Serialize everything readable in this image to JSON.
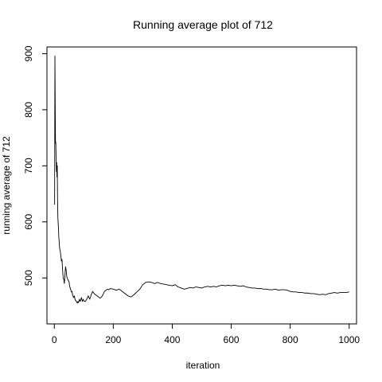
{
  "chart_data": {
    "type": "line",
    "title": "Running average plot of 712",
    "xlabel": "iteration",
    "ylabel": "running average of 712",
    "xlim": [
      -25,
      1025
    ],
    "ylim": [
      418,
      912
    ],
    "x_ticks": [
      0,
      200,
      400,
      600,
      800,
      1000
    ],
    "y_ticks": [
      500,
      600,
      700,
      800,
      900
    ],
    "grid": false,
    "series": [
      {
        "values": [
          [
            1,
            631
          ],
          [
            2,
            896
          ],
          [
            3,
            810
          ],
          [
            4,
            740
          ],
          [
            5,
            742
          ],
          [
            6,
            715
          ],
          [
            7,
            690
          ],
          [
            8,
            706
          ],
          [
            9,
            680
          ],
          [
            10,
            700
          ],
          [
            11,
            640
          ],
          [
            12,
            608
          ],
          [
            13,
            598
          ],
          [
            14,
            590
          ],
          [
            15,
            575
          ],
          [
            16,
            568
          ],
          [
            18,
            553
          ],
          [
            20,
            548
          ],
          [
            22,
            540
          ],
          [
            24,
            530
          ],
          [
            26,
            533
          ],
          [
            28,
            515
          ],
          [
            30,
            500
          ],
          [
            32,
            498
          ],
          [
            34,
            490
          ],
          [
            36,
            505
          ],
          [
            38,
            520
          ],
          [
            40,
            515
          ],
          [
            42,
            503
          ],
          [
            45,
            498
          ],
          [
            48,
            495
          ],
          [
            50,
            493
          ],
          [
            52,
            485
          ],
          [
            55,
            480
          ],
          [
            58,
            475
          ],
          [
            60,
            476
          ],
          [
            62,
            470
          ],
          [
            65,
            465
          ],
          [
            68,
            468
          ],
          [
            70,
            462
          ],
          [
            72,
            460
          ],
          [
            75,
            458
          ],
          [
            78,
            455
          ],
          [
            80,
            458
          ],
          [
            82,
            456
          ],
          [
            85,
            462
          ],
          [
            88,
            458
          ],
          [
            90,
            462
          ],
          [
            92,
            465
          ],
          [
            95,
            458
          ],
          [
            98,
            462
          ],
          [
            100,
            459
          ],
          [
            105,
            458
          ],
          [
            110,
            462
          ],
          [
            115,
            468
          ],
          [
            120,
            462
          ],
          [
            125,
            470
          ],
          [
            130,
            476
          ],
          [
            135,
            472
          ],
          [
            140,
            470
          ],
          [
            145,
            468
          ],
          [
            150,
            466
          ],
          [
            155,
            464
          ],
          [
            160,
            466
          ],
          [
            165,
            470
          ],
          [
            170,
            476
          ],
          [
            175,
            478
          ],
          [
            180,
            480
          ],
          [
            185,
            479
          ],
          [
            190,
            481
          ],
          [
            200,
            480
          ],
          [
            210,
            478
          ],
          [
            220,
            480
          ],
          [
            230,
            476
          ],
          [
            240,
            472
          ],
          [
            250,
            468
          ],
          [
            260,
            466
          ],
          [
            270,
            470
          ],
          [
            280,
            475
          ],
          [
            290,
            480
          ],
          [
            300,
            488
          ],
          [
            310,
            492
          ],
          [
            320,
            493
          ],
          [
            330,
            492
          ],
          [
            340,
            490
          ],
          [
            350,
            492
          ],
          [
            360,
            490
          ],
          [
            370,
            489
          ],
          [
            380,
            488
          ],
          [
            390,
            487
          ],
          [
            400,
            486
          ],
          [
            410,
            488
          ],
          [
            420,
            484
          ],
          [
            430,
            482
          ],
          [
            440,
            480
          ],
          [
            450,
            481
          ],
          [
            460,
            483
          ],
          [
            470,
            482
          ],
          [
            480,
            484
          ],
          [
            490,
            483
          ],
          [
            500,
            482
          ],
          [
            510,
            484
          ],
          [
            520,
            485
          ],
          [
            530,
            484
          ],
          [
            540,
            485
          ],
          [
            550,
            484
          ],
          [
            560,
            486
          ],
          [
            570,
            487
          ],
          [
            580,
            486
          ],
          [
            590,
            487
          ],
          [
            600,
            486
          ],
          [
            610,
            487
          ],
          [
            620,
            486
          ],
          [
            630,
            485
          ],
          [
            640,
            486
          ],
          [
            650,
            484
          ],
          [
            660,
            483
          ],
          [
            670,
            482
          ],
          [
            680,
            482
          ],
          [
            690,
            481
          ],
          [
            700,
            481
          ],
          [
            710,
            480
          ],
          [
            720,
            480
          ],
          [
            730,
            479
          ],
          [
            740,
            479
          ],
          [
            750,
            480
          ],
          [
            760,
            478
          ],
          [
            770,
            479
          ],
          [
            780,
            479
          ],
          [
            790,
            478
          ],
          [
            800,
            476
          ],
          [
            810,
            475
          ],
          [
            820,
            475
          ],
          [
            830,
            474
          ],
          [
            840,
            474
          ],
          [
            850,
            473
          ],
          [
            860,
            473
          ],
          [
            870,
            472
          ],
          [
            880,
            472
          ],
          [
            890,
            471
          ],
          [
            900,
            470
          ],
          [
            910,
            471
          ],
          [
            920,
            470
          ],
          [
            930,
            472
          ],
          [
            940,
            473
          ],
          [
            950,
            474
          ],
          [
            960,
            473
          ],
          [
            970,
            474
          ],
          [
            980,
            474
          ],
          [
            990,
            474
          ],
          [
            1000,
            475
          ]
        ]
      }
    ]
  }
}
